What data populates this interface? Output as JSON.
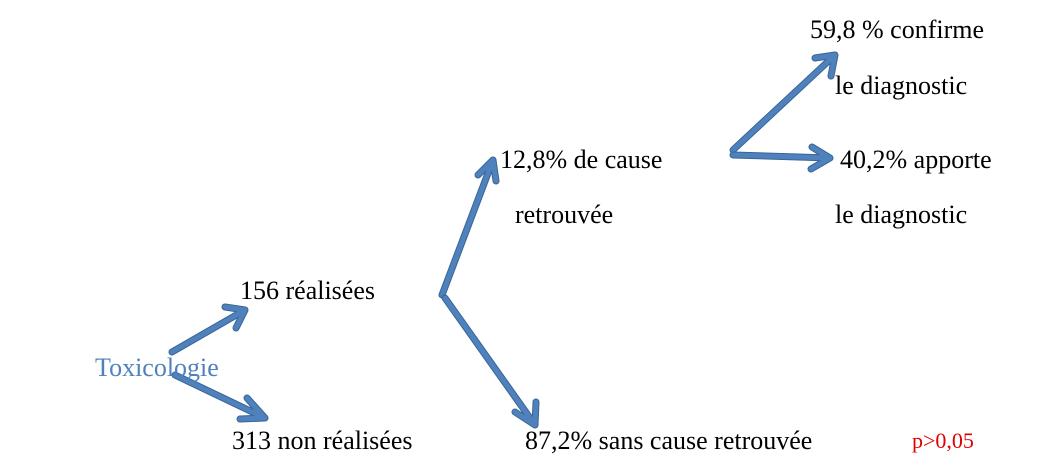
{
  "root": {
    "label": "Toxicologie"
  },
  "nodes": [
    {
      "lines": [
        "156 réalisées"
      ]
    },
    {
      "lines": [
        "313 non réalisées"
      ]
    },
    {
      "lines": [
        "12,8% de cause",
        "retrouvée"
      ]
    },
    {
      "lines": [
        "87,2% sans cause retrouvée"
      ]
    },
    {
      "lines": [
        "59,8 % confirme",
        "le diagnostic"
      ]
    },
    {
      "lines": [
        "40,2% apporte",
        "le diagnostic"
      ]
    }
  ],
  "annotation": "p>0,05"
}
